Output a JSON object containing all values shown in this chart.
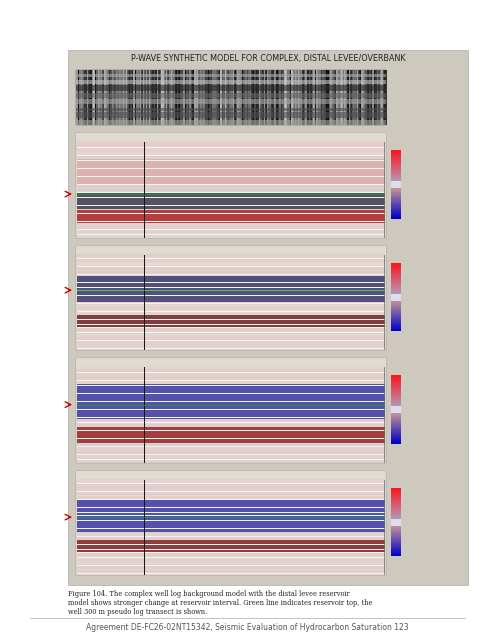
{
  "page_title": "P-WAVE SYNTHETIC MODEL FOR COMPLEX, DISTAL LEVEE/OVERBANK",
  "footer_text": "Agreement DE-FC26-02NT15342, Seismic Evaluation of Hydrocarbon Saturation 123",
  "caption_lines": [
    "Figure 104. The complex well log background model with the distal levee reservoir",
    "model shows stronger change at reservoir interval. Green line indicates reservoir top, the",
    "well 300 m pseudo log transect is shown."
  ],
  "page_bg": "#ffffff",
  "content_bg": "#cdc9be",
  "panel_bg": "#f0ebe0",
  "title_color": "#222222",
  "footer_color": "#555555",
  "caption_color": "#222222"
}
